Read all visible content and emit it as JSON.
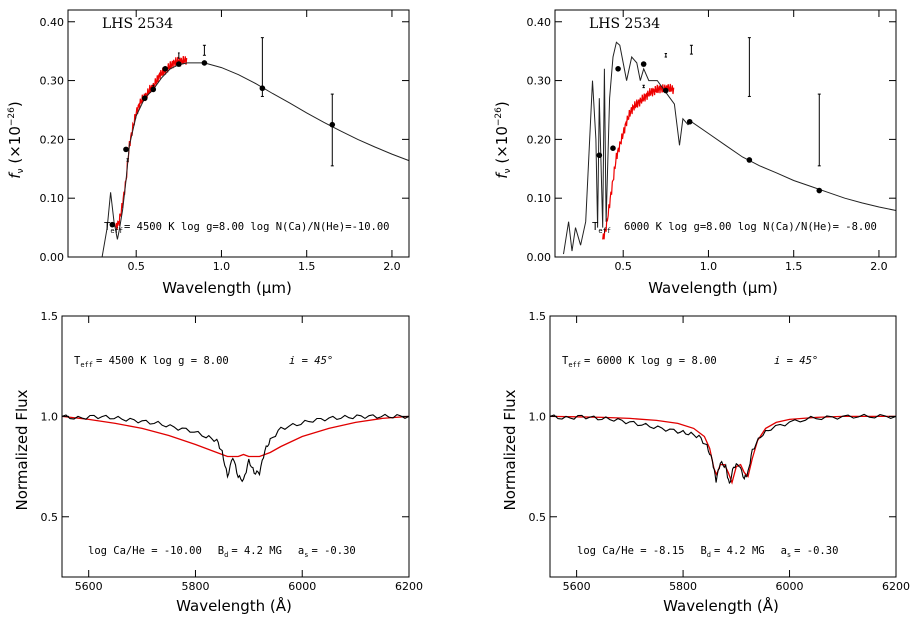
{
  "chart_data": [
    {
      "type": "line",
      "title": "LHS 2534",
      "xlabel": "Wavelength (μm)",
      "ylabel": "f_ν (×10^-26)",
      "xlim": [
        0.1,
        2.1
      ],
      "ylim": [
        0,
        0.42
      ],
      "xticks": [
        0.5,
        1.0,
        1.5,
        2.0
      ],
      "xtick_labels": [
        "0.5",
        "1.0",
        "1.5",
        "2.0"
      ],
      "yticks": [
        0,
        0.1,
        0.2,
        0.3,
        0.4
      ],
      "ytick_labels": [
        "0.00",
        "0.10",
        "0.20",
        "0.30",
        "0.40"
      ],
      "annotation": {
        "teff": "T",
        "teff_sub": "eff",
        "text": "= 4500 K   log g=8.00  log N(Ca)/N(He)=-10.00"
      },
      "model_curve": {
        "x": [
          0.3,
          0.33,
          0.35,
          0.37,
          0.39,
          0.4,
          0.42,
          0.44,
          0.46,
          0.5,
          0.55,
          0.6,
          0.65,
          0.7,
          0.75,
          0.8,
          0.9,
          1.0,
          1.1,
          1.2,
          1.3,
          1.4,
          1.5,
          1.6,
          1.7,
          1.8,
          1.9,
          2.0,
          2.1
        ],
        "y": [
          0.0,
          0.05,
          0.11,
          0.06,
          0.03,
          0.045,
          0.08,
          0.13,
          0.19,
          0.24,
          0.27,
          0.285,
          0.305,
          0.32,
          0.327,
          0.33,
          0.33,
          0.322,
          0.31,
          0.295,
          0.278,
          0.262,
          0.245,
          0.229,
          0.214,
          0.2,
          0.187,
          0.175,
          0.164
        ]
      },
      "observed_spectrum": {
        "x": [
          0.38,
          0.4,
          0.42,
          0.44,
          0.46,
          0.48,
          0.5,
          0.52,
          0.54,
          0.56,
          0.58,
          0.6,
          0.62,
          0.64,
          0.66,
          0.68,
          0.7,
          0.72,
          0.74,
          0.76,
          0.78,
          0.8
        ],
        "y": [
          0.05,
          0.06,
          0.09,
          0.13,
          0.19,
          0.22,
          0.245,
          0.26,
          0.27,
          0.275,
          0.285,
          0.29,
          0.3,
          0.31,
          0.315,
          0.32,
          0.325,
          0.33,
          0.333,
          0.332,
          0.334,
          0.335
        ]
      },
      "photometry": [
        {
          "x": 0.36,
          "y": 0.055
        },
        {
          "x": 0.44,
          "y": 0.183
        },
        {
          "x": 0.55,
          "y": 0.27
        },
        {
          "x": 0.6,
          "y": 0.285
        },
        {
          "x": 0.67,
          "y": 0.32
        },
        {
          "x": 0.75,
          "y": 0.328
        },
        {
          "x": 0.9,
          "y": 0.33
        },
        {
          "x": 1.24,
          "y": 0.287
        },
        {
          "x": 1.65,
          "y": 0.225
        }
      ],
      "error_bars": [
        {
          "x": 0.45,
          "y": 0.165,
          "lo": 0.163,
          "hi": 0.167,
          "half": 0.02
        },
        {
          "x": 0.6,
          "y": 0.288,
          "lo": 0.285,
          "hi": 0.292,
          "half": 0.015
        },
        {
          "x": 0.75,
          "y": 0.342,
          "lo": 0.338,
          "hi": 0.347,
          "half": 0.015
        },
        {
          "x": 0.9,
          "y": 0.352,
          "lo": 0.343,
          "hi": 0.36,
          "half": 0.025
        },
        {
          "x": 1.24,
          "y": 0.32,
          "lo": 0.273,
          "hi": 0.373,
          "half": 0.025
        },
        {
          "x": 1.65,
          "y": 0.215,
          "lo": 0.155,
          "hi": 0.277,
          "half": 0.025
        }
      ]
    },
    {
      "type": "line",
      "title": "LHS 2534",
      "xlabel": "Wavelength (μm)",
      "ylabel": "f_ν (×10^-26)",
      "xlim": [
        0.1,
        2.1
      ],
      "ylim": [
        0,
        0.42
      ],
      "xticks": [
        0.5,
        1.0,
        1.5,
        2.0
      ],
      "xtick_labels": [
        "0.5",
        "1.0",
        "1.5",
        "2.0"
      ],
      "yticks": [
        0,
        0.1,
        0.2,
        0.3,
        0.4
      ],
      "ytick_labels": [
        "0.00",
        "0.10",
        "0.20",
        "0.30",
        "0.40"
      ],
      "annotation": {
        "teff": "T",
        "teff_sub": "eff",
        "text": "6000 K   log g=8.00  log N(Ca)/N(He)= -8.00"
      },
      "model_curve": {
        "x": [
          0.15,
          0.18,
          0.2,
          0.22,
          0.25,
          0.28,
          0.3,
          0.32,
          0.34,
          0.35,
          0.36,
          0.38,
          0.39,
          0.4,
          0.42,
          0.44,
          0.46,
          0.48,
          0.5,
          0.52,
          0.55,
          0.58,
          0.6,
          0.62,
          0.65,
          0.7,
          0.75,
          0.8,
          0.83,
          0.85,
          0.88,
          0.9,
          1.0,
          1.1,
          1.2,
          1.3,
          1.4,
          1.5,
          1.6,
          1.7,
          1.8,
          1.9,
          2.0,
          2.1
        ],
        "y": [
          0.005,
          0.06,
          0.01,
          0.05,
          0.02,
          0.06,
          0.18,
          0.3,
          0.2,
          0.05,
          0.27,
          0.05,
          0.32,
          0.06,
          0.27,
          0.34,
          0.365,
          0.36,
          0.33,
          0.3,
          0.34,
          0.33,
          0.3,
          0.32,
          0.3,
          0.3,
          0.28,
          0.26,
          0.19,
          0.235,
          0.225,
          0.23,
          0.21,
          0.19,
          0.17,
          0.155,
          0.143,
          0.13,
          0.12,
          0.11,
          0.1,
          0.092,
          0.085,
          0.079
        ]
      },
      "observed_spectrum": {
        "x": [
          0.38,
          0.4,
          0.42,
          0.44,
          0.46,
          0.48,
          0.5,
          0.52,
          0.54,
          0.56,
          0.58,
          0.6,
          0.62,
          0.64,
          0.66,
          0.68,
          0.7,
          0.72,
          0.74,
          0.76,
          0.78,
          0.8
        ],
        "y": [
          0.03,
          0.05,
          0.09,
          0.13,
          0.17,
          0.19,
          0.21,
          0.23,
          0.245,
          0.255,
          0.26,
          0.265,
          0.27,
          0.275,
          0.28,
          0.282,
          0.285,
          0.287,
          0.285,
          0.288,
          0.286,
          0.284
        ]
      },
      "photometry": [
        {
          "x": 0.36,
          "y": 0.173
        },
        {
          "x": 0.44,
          "y": 0.185
        },
        {
          "x": 0.47,
          "y": 0.32
        },
        {
          "x": 0.62,
          "y": 0.328
        },
        {
          "x": 0.75,
          "y": 0.283
        },
        {
          "x": 0.89,
          "y": 0.23
        },
        {
          "x": 1.24,
          "y": 0.165
        },
        {
          "x": 1.65,
          "y": 0.113
        }
      ],
      "error_bars": [
        {
          "x": 0.62,
          "y": 0.29,
          "lo": 0.288,
          "hi": 0.292,
          "half": 0.02
        },
        {
          "x": 0.75,
          "y": 0.343,
          "lo": 0.34,
          "hi": 0.346,
          "half": 0.02
        },
        {
          "x": 0.9,
          "y": 0.352,
          "lo": 0.345,
          "hi": 0.36,
          "half": 0.025
        },
        {
          "x": 1.24,
          "y": 0.32,
          "lo": 0.273,
          "hi": 0.373,
          "half": 0.025
        },
        {
          "x": 1.65,
          "y": 0.215,
          "lo": 0.155,
          "hi": 0.277,
          "half": 0.025
        }
      ]
    },
    {
      "type": "line",
      "xlabel": "Wavelength (Å)",
      "ylabel": "Normalized Flux",
      "xlim": [
        5550,
        6200
      ],
      "ylim": [
        0.2,
        1.5
      ],
      "xticks": [
        5600,
        5800,
        6000,
        6200
      ],
      "xtick_labels": [
        "5600",
        "5800",
        "6000",
        "6200"
      ],
      "yticks": [
        0.5,
        1.0,
        1.5
      ],
      "ytick_labels": [
        "0.5",
        "1.0",
        "1.5"
      ],
      "annotation_top": {
        "teff": "T",
        "teff_sub": "eff",
        "text": "=  4500 K    log g = 8.00",
        "incl": "i = 45°"
      },
      "annotation_bottom": {
        "text1": "log Ca/He = -10.00",
        "bd": "B",
        "bd_sub": "d",
        "text2": "=  4.2 MG",
        "as": "a",
        "as_sub": "s",
        "text3": "= -0.30"
      },
      "observed": {
        "x": [
          5550,
          5580,
          5610,
          5640,
          5670,
          5700,
          5730,
          5760,
          5790,
          5820,
          5840,
          5850,
          5860,
          5870,
          5880,
          5890,
          5900,
          5910,
          5920,
          5930,
          5940,
          5960,
          5990,
          6020,
          6050,
          6080,
          6110,
          6140,
          6170,
          6200
        ],
        "y": [
          1.0,
          0.99,
          1.0,
          0.995,
          0.985,
          0.975,
          0.965,
          0.945,
          0.93,
          0.9,
          0.88,
          0.82,
          0.7,
          0.8,
          0.7,
          0.68,
          0.78,
          0.72,
          0.72,
          0.83,
          0.88,
          0.94,
          0.96,
          0.98,
          0.99,
          0.995,
          1.0,
          1.0,
          1.0,
          1.0
        ]
      },
      "model": {
        "x": [
          5550,
          5600,
          5650,
          5700,
          5750,
          5800,
          5840,
          5860,
          5880,
          5890,
          5900,
          5920,
          5940,
          5960,
          6000,
          6050,
          6100,
          6150,
          6200
        ],
        "y": [
          1.0,
          0.985,
          0.965,
          0.94,
          0.905,
          0.86,
          0.82,
          0.8,
          0.8,
          0.81,
          0.8,
          0.8,
          0.82,
          0.85,
          0.9,
          0.94,
          0.97,
          0.99,
          1.0
        ]
      }
    },
    {
      "type": "line",
      "xlabel": "Wavelength (Å)",
      "ylabel": "Normalized Flux",
      "xlim": [
        5550,
        6200
      ],
      "ylim": [
        0.2,
        1.5
      ],
      "xticks": [
        5600,
        5800,
        6000,
        6200
      ],
      "xtick_labels": [
        "5600",
        "5800",
        "6000",
        "6200"
      ],
      "yticks": [
        0.5,
        1.0,
        1.5
      ],
      "ytick_labels": [
        "0.5",
        "1.0",
        "1.5"
      ],
      "annotation_top": {
        "teff": "T",
        "teff_sub": "eff",
        "text": "=  6000 K    log g = 8.00",
        "incl": "i = 45°"
      },
      "annotation_bottom": {
        "text1": "log Ca/He =  -8.15",
        "bd": "B",
        "bd_sub": "d",
        "text2": "=  4.2 MG",
        "as": "a",
        "as_sub": "s",
        "text3": "= -0.30"
      },
      "observed": {
        "x": [
          5550,
          5580,
          5610,
          5640,
          5670,
          5700,
          5730,
          5760,
          5790,
          5810,
          5830,
          5845,
          5855,
          5862,
          5870,
          5880,
          5887,
          5895,
          5905,
          5915,
          5922,
          5930,
          5945,
          5965,
          6000,
          6040,
          6080,
          6120,
          6160,
          6200
        ],
        "y": [
          1.0,
          0.99,
          1.0,
          0.99,
          0.985,
          0.97,
          0.955,
          0.94,
          0.925,
          0.915,
          0.9,
          0.85,
          0.78,
          0.68,
          0.77,
          0.75,
          0.66,
          0.75,
          0.76,
          0.69,
          0.72,
          0.83,
          0.9,
          0.94,
          0.97,
          0.99,
          0.995,
          1.0,
          1.0,
          1.0
        ]
      },
      "model": {
        "x": [
          5550,
          5600,
          5650,
          5700,
          5750,
          5790,
          5820,
          5840,
          5850,
          5858,
          5863,
          5870,
          5878,
          5885,
          5892,
          5900,
          5908,
          5915,
          5922,
          5930,
          5940,
          5955,
          5975,
          6000,
          6050,
          6100,
          6150,
          6200
        ],
        "y": [
          1.0,
          0.998,
          0.995,
          0.99,
          0.98,
          0.965,
          0.94,
          0.9,
          0.84,
          0.74,
          0.71,
          0.76,
          0.76,
          0.72,
          0.67,
          0.75,
          0.76,
          0.72,
          0.7,
          0.79,
          0.88,
          0.94,
          0.97,
          0.985,
          0.995,
          1.0,
          1.0,
          1.0
        ]
      }
    }
  ]
}
